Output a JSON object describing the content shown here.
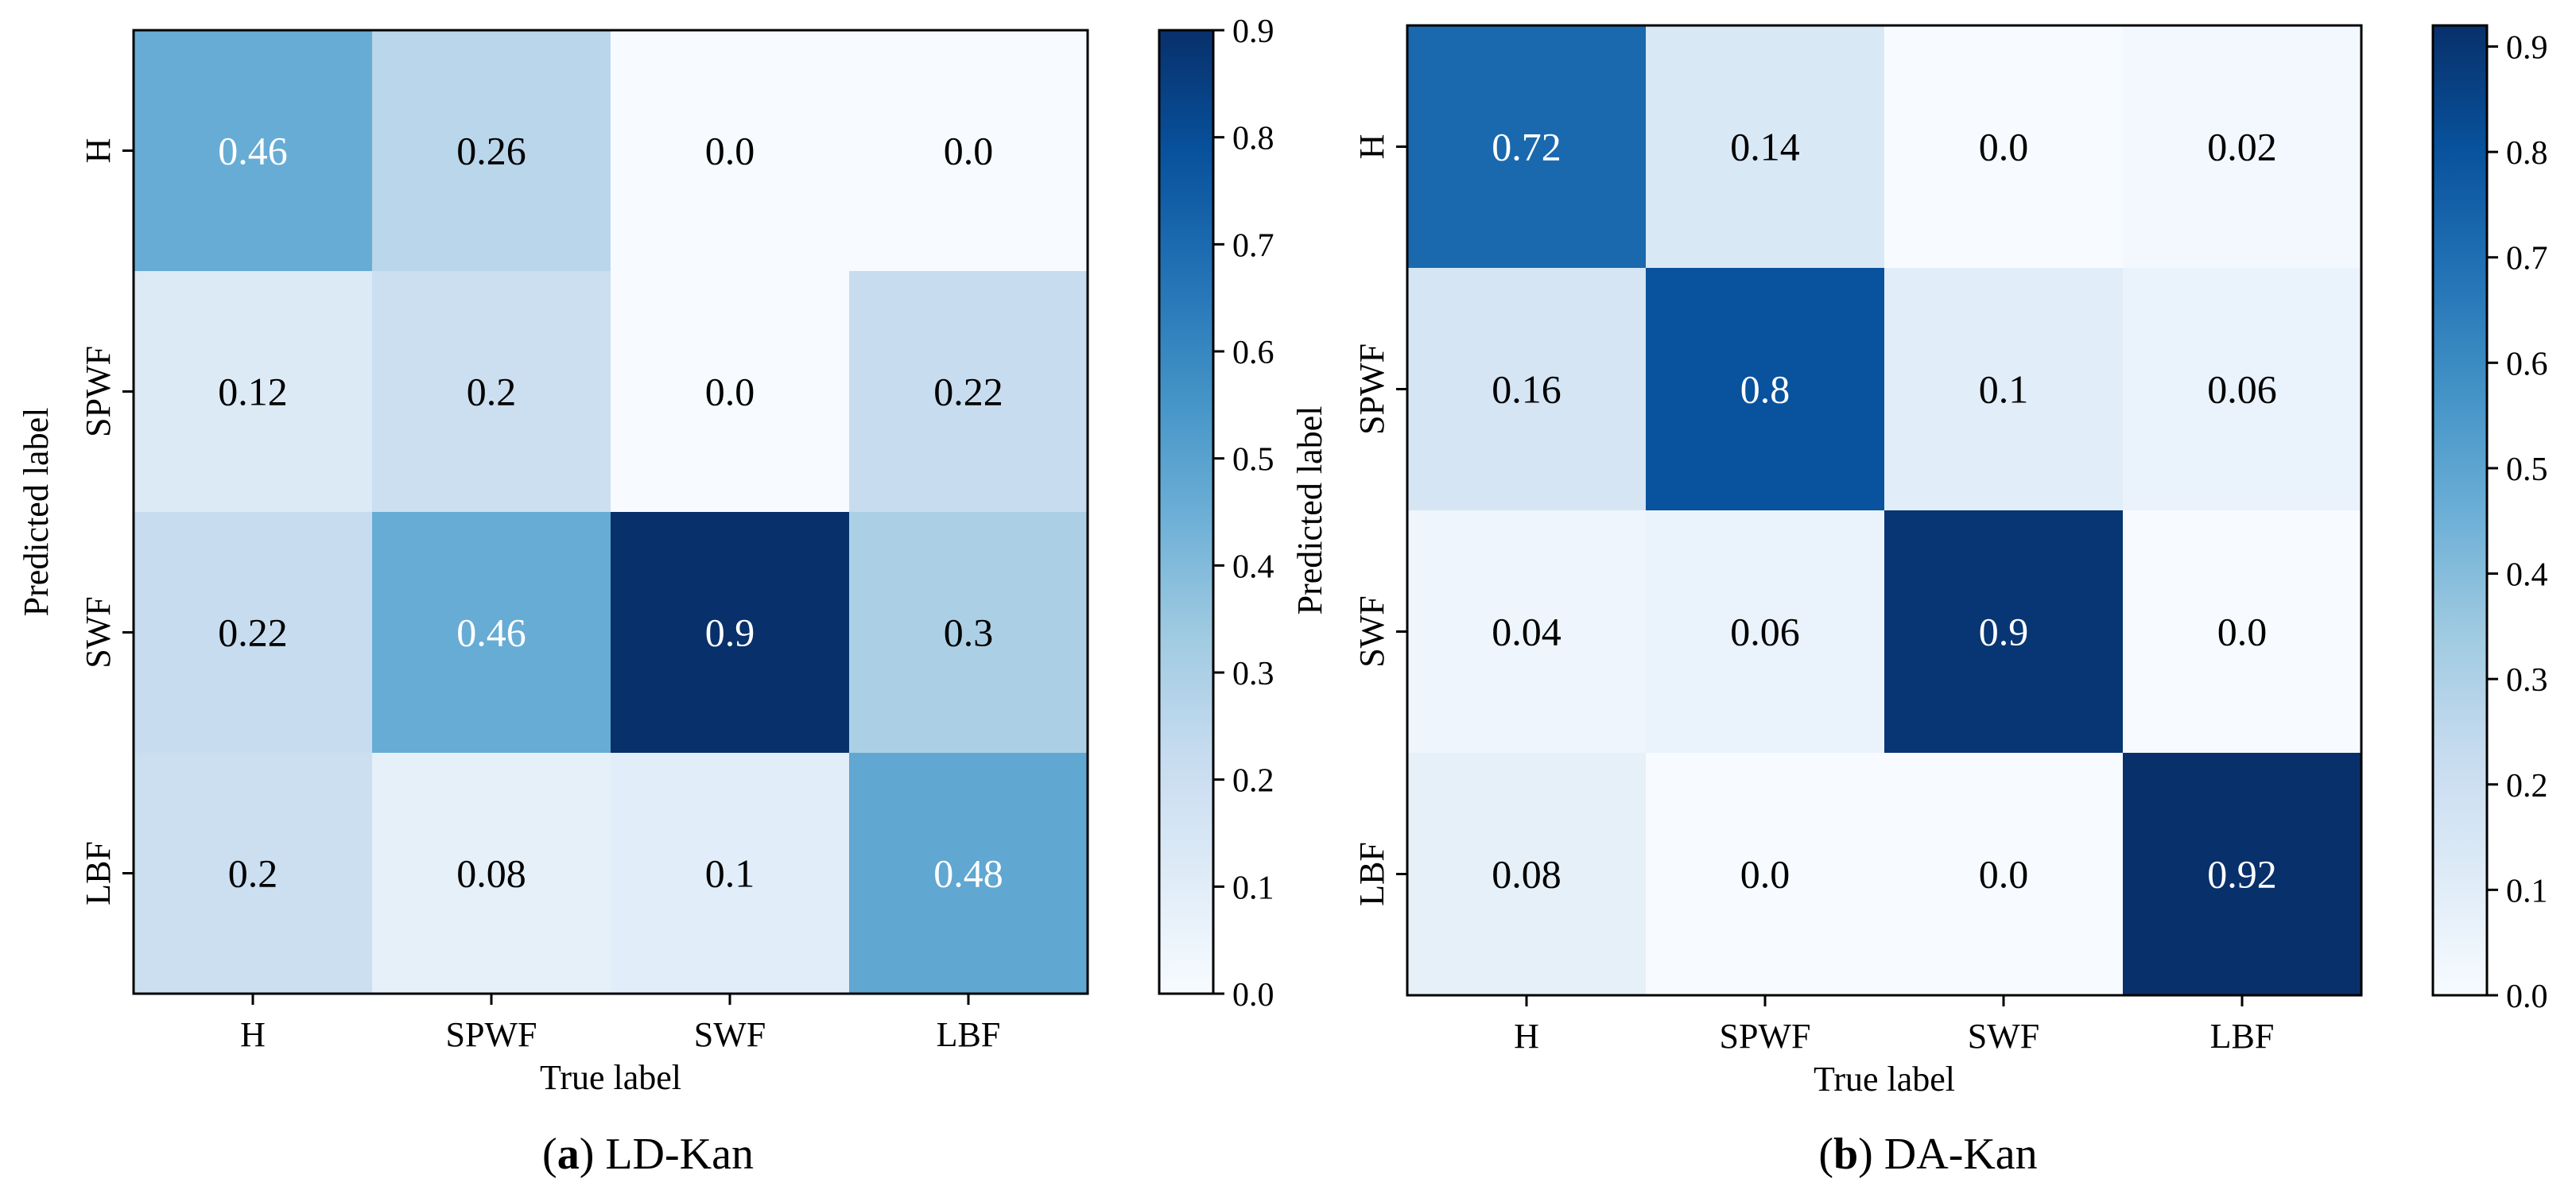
{
  "chart_data": [
    {
      "type": "heatmap",
      "title": "",
      "xlabel": "True label",
      "ylabel": "Predicted label",
      "x_categories": [
        "H",
        "SPWF",
        "SWF",
        "LBF"
      ],
      "y_categories": [
        "H",
        "SPWF",
        "SWF",
        "LBF"
      ],
      "values": [
        [
          0.46,
          0.26,
          0.0,
          0.0
        ],
        [
          0.12,
          0.2,
          0.0,
          0.22
        ],
        [
          0.22,
          0.46,
          0.9,
          0.3
        ],
        [
          0.2,
          0.08,
          0.1,
          0.48
        ]
      ],
      "value_labels": [
        [
          "0.46",
          "0.26",
          "0.0",
          "0.0"
        ],
        [
          "0.12",
          "0.2",
          "0.0",
          "0.22"
        ],
        [
          "0.22",
          "0.46",
          "0.9",
          "0.3"
        ],
        [
          "0.2",
          "0.08",
          "0.1",
          "0.48"
        ]
      ],
      "colorbar": {
        "range": [
          0.0,
          0.9
        ],
        "ticks": [
          "0.0",
          "0.1",
          "0.2",
          "0.3",
          "0.4",
          "0.5",
          "0.6",
          "0.7",
          "0.8",
          "0.9"
        ]
      },
      "caption_letter": "a",
      "caption_text": ") LD-Kan",
      "colormap": "Blues"
    },
    {
      "type": "heatmap",
      "title": "",
      "xlabel": "True label",
      "ylabel": "Predicted label",
      "x_categories": [
        "H",
        "SPWF",
        "SWF",
        "LBF"
      ],
      "y_categories": [
        "H",
        "SPWF",
        "SWF",
        "LBF"
      ],
      "values": [
        [
          0.72,
          0.14,
          0.0,
          0.02
        ],
        [
          0.16,
          0.8,
          0.1,
          0.06
        ],
        [
          0.04,
          0.06,
          0.9,
          0.0
        ],
        [
          0.08,
          0.0,
          0.0,
          0.92
        ]
      ],
      "value_labels": [
        [
          "0.72",
          "0.14",
          "0.0",
          "0.02"
        ],
        [
          "0.16",
          "0.8",
          "0.1",
          "0.06"
        ],
        [
          "0.04",
          "0.06",
          "0.9",
          "0.0"
        ],
        [
          "0.08",
          "0.0",
          "0.0",
          "0.92"
        ]
      ],
      "colorbar": {
        "range": [
          0.0,
          0.92
        ],
        "ticks": [
          "0.0",
          "0.1",
          "0.2",
          "0.3",
          "0.4",
          "0.5",
          "0.6",
          "0.7",
          "0.8",
          "0.9"
        ]
      },
      "caption_letter": "b",
      "caption_text": ") DA-Kan",
      "colormap": "Blues"
    }
  ]
}
